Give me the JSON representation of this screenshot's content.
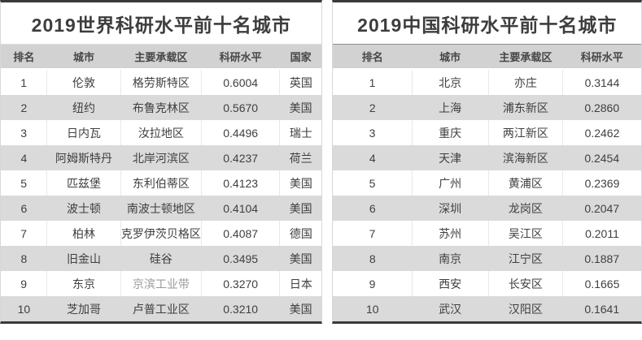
{
  "colors": {
    "outer_border_dark": "#3a3a3a",
    "side_border_light": "#d8d8d8",
    "header_bg": "#d2d2d2",
    "row_alt_bg": "#dadada",
    "title_text": "#3d3d3d",
    "header_text": "#474747",
    "body_text": "#3f3f3f",
    "muted_text": "#9a9a9a"
  },
  "chart_data": [
    {
      "type": "table",
      "title": "2019世界科研水平前十名城市",
      "columns": [
        "排名",
        "城市",
        "主要承载区",
        "科研水平",
        "国家"
      ],
      "col_widths": [
        "14.4%",
        "22.9%",
        "25.2%",
        "24.4%",
        "13.1%"
      ],
      "rows": [
        [
          "1",
          "伦敦",
          "格劳斯特区",
          "0.6004",
          "英国"
        ],
        [
          "2",
          "纽约",
          "布鲁克林区",
          "0.5670",
          "美国"
        ],
        [
          "3",
          "日内瓦",
          "汝拉地区",
          "0.4496",
          "瑞士"
        ],
        [
          "4",
          "阿姆斯特丹",
          "北岸河滨区",
          "0.4237",
          "荷兰"
        ],
        [
          "5",
          "匹兹堡",
          "东利伯蒂区",
          "0.4123",
          "美国"
        ],
        [
          "6",
          "波士顿",
          "南波士顿地区",
          "0.4104",
          "美国"
        ],
        [
          "7",
          "柏林",
          "克罗伊茨贝格区",
          "0.4087",
          "德国"
        ],
        [
          "8",
          "旧金山",
          "硅谷",
          "0.3495",
          "美国"
        ],
        [
          "9",
          "东京",
          "京滨工业带",
          "0.3270",
          "日本"
        ],
        [
          "10",
          "芝加哥",
          "卢普工业区",
          "0.3210",
          "美国"
        ]
      ],
      "muted_cells": [
        [
          8,
          2
        ]
      ],
      "layout": {
        "zebra_striping": true,
        "alt_rows": "even",
        "text_align": "center"
      }
    },
    {
      "type": "table",
      "title": "2019中国科研水平前十名城市",
      "columns": [
        "排名",
        "城市",
        "主要承载区",
        "科研水平"
      ],
      "col_widths": [
        "25.5%",
        "24.9%",
        "24.1%",
        "25.5%"
      ],
      "rows": [
        [
          "1",
          "北京",
          "亦庄",
          "0.3144"
        ],
        [
          "2",
          "上海",
          "浦东新区",
          "0.2860"
        ],
        [
          "3",
          "重庆",
          "两江新区",
          "0.2462"
        ],
        [
          "4",
          "天津",
          "滨海新区",
          "0.2454"
        ],
        [
          "5",
          "广州",
          "黄浦区",
          "0.2369"
        ],
        [
          "6",
          "深圳",
          "龙岗区",
          "0.2047"
        ],
        [
          "7",
          "苏州",
          "吴江区",
          "0.2011"
        ],
        [
          "8",
          "南京",
          "江宁区",
          "0.1887"
        ],
        [
          "9",
          "西安",
          "长安区",
          "0.1665"
        ],
        [
          "10",
          "武汉",
          "汉阳区",
          "0.1641"
        ]
      ],
      "muted_cells": [],
      "layout": {
        "zebra_striping": true,
        "alt_rows": "even",
        "text_align": "center"
      }
    }
  ]
}
